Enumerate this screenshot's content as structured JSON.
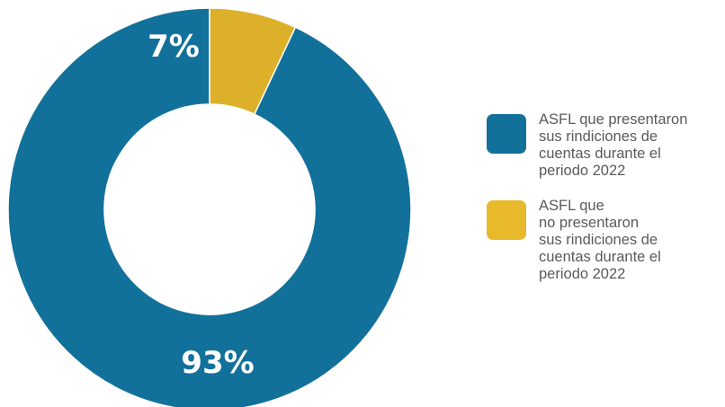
{
  "chart_data": {
    "type": "pie",
    "donut": true,
    "title": "",
    "categories": [
      "ASFL que presentaron\nsus rindiciones de\ncuentas durante el\nperiodo 2022",
      "ASFL que\nno presentaron\nsus rindiciones de\ncuentas durante el\nperiodo 2022"
    ],
    "values": [
      93,
      7
    ],
    "labels": [
      "93%",
      "7%"
    ],
    "colors": [
      "#12719a",
      "#ddb02a"
    ],
    "legend_colors": [
      "#12719a",
      "#e8b92a"
    ],
    "legend_position": "right"
  }
}
